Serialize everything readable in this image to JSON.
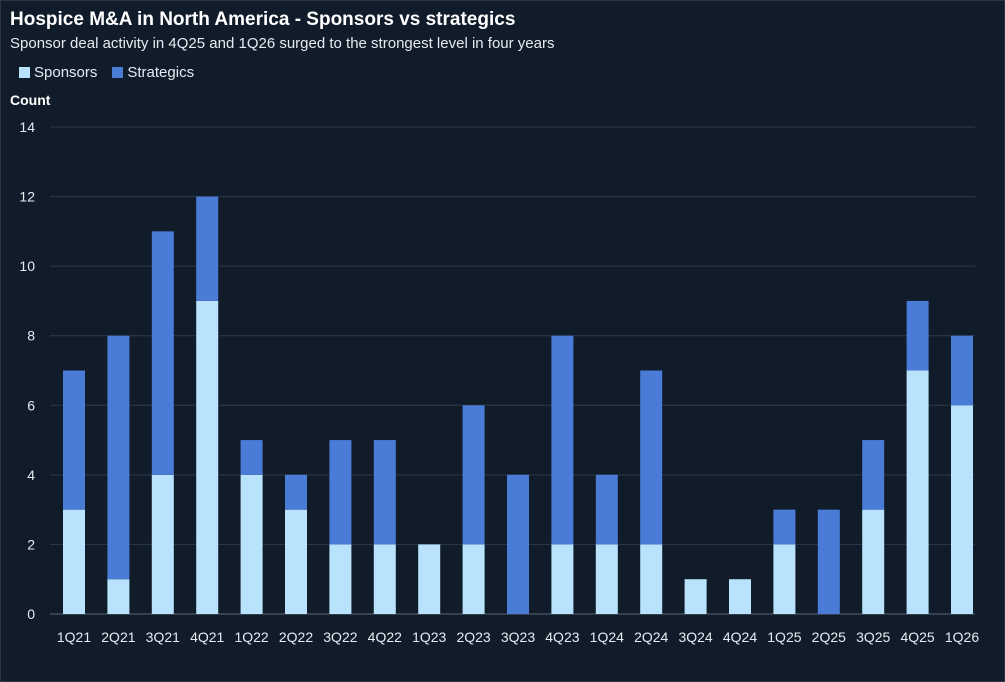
{
  "title": "Hospice M&A in North America - Sponsors vs strategics",
  "subtitle": "Sponsor deal activity in 4Q25 and 1Q26 surged to the strongest level in four years",
  "legend": {
    "sponsors_label": "Sponsors",
    "strategics_label": "Strategics"
  },
  "colors": {
    "sponsors": "#b9e3fd",
    "strategics": "#4a7bd6",
    "background": "#111c2a",
    "gridline": "#2c3a4c"
  },
  "chart_data": {
    "type": "bar",
    "stacked": true,
    "title": "Hospice M&A in North America - Sponsors vs strategics",
    "subtitle": "Sponsor deal activity in 4Q25 and 1Q26 surged to the strongest level in four years",
    "ylabel": "Count",
    "xlabel": "",
    "ylim": [
      0,
      14
    ],
    "yticks": [
      "0",
      "2",
      "4",
      "6",
      "8",
      "10",
      "12",
      "14"
    ],
    "grid": true,
    "legend_position": "top-left",
    "categories": [
      "1Q21",
      "2Q21",
      "3Q21",
      "4Q21",
      "1Q22",
      "2Q22",
      "3Q22",
      "4Q22",
      "1Q23",
      "2Q23",
      "3Q23",
      "4Q23",
      "1Q24",
      "2Q24",
      "3Q24",
      "4Q24",
      "1Q25",
      "2Q25",
      "3Q25",
      "4Q25",
      "1Q26"
    ],
    "series": [
      {
        "name": "Sponsors",
        "values": [
          3,
          1,
          4,
          9,
          4,
          3,
          2,
          2,
          2,
          2,
          0,
          2,
          2,
          2,
          1,
          1,
          2,
          0,
          3,
          7,
          6
        ]
      },
      {
        "name": "Strategics",
        "values": [
          4,
          7,
          7,
          3,
          1,
          1,
          3,
          3,
          0,
          4,
          4,
          6,
          2,
          5,
          0,
          0,
          1,
          3,
          2,
          2,
          2
        ]
      }
    ]
  }
}
